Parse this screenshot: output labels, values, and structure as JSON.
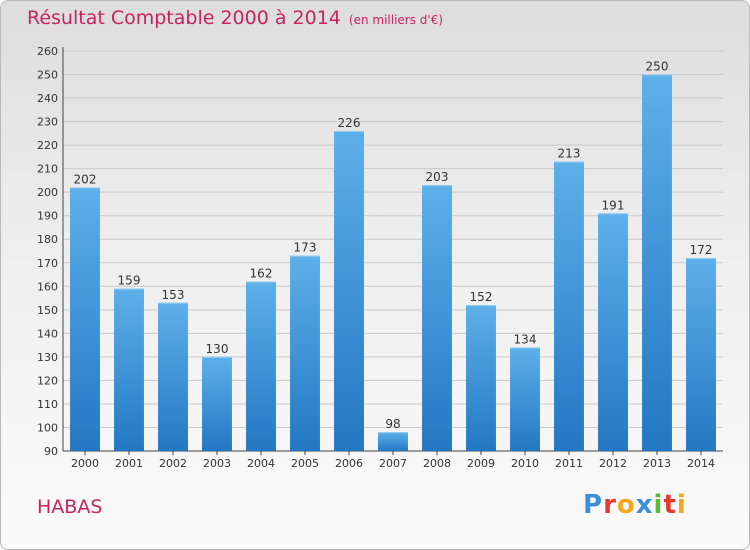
{
  "title": "Résultat Comptable 2000 à 2014",
  "subtitle": "(en milliers d'€)",
  "commune": "HABAS",
  "logo": {
    "letters": [
      {
        "char": "P",
        "color": "#3b8ed8"
      },
      {
        "char": "r",
        "color": "#e23b2e"
      },
      {
        "char": "o",
        "color": "#f4a61d"
      },
      {
        "char": "x",
        "color": "#3b8ed8"
      },
      {
        "char": "i",
        "color": "#61b83a"
      },
      {
        "char": "t",
        "color": "#e23b2e"
      },
      {
        "char": "i",
        "color": "#f4a61d"
      }
    ]
  },
  "chart_data": {
    "type": "bar",
    "categories": [
      "2000",
      "2001",
      "2002",
      "2003",
      "2004",
      "2005",
      "2006",
      "2007",
      "2008",
      "2009",
      "2010",
      "2011",
      "2012",
      "2013",
      "2014"
    ],
    "values": [
      202,
      159,
      153,
      130,
      162,
      173,
      226,
      98,
      203,
      152,
      134,
      213,
      191,
      250,
      172
    ],
    "ylim": [
      90,
      260
    ],
    "ytick_step": 10,
    "grid": true,
    "bar_color_top": "#5db0e9",
    "bar_color_bottom": "#2477c2"
  }
}
